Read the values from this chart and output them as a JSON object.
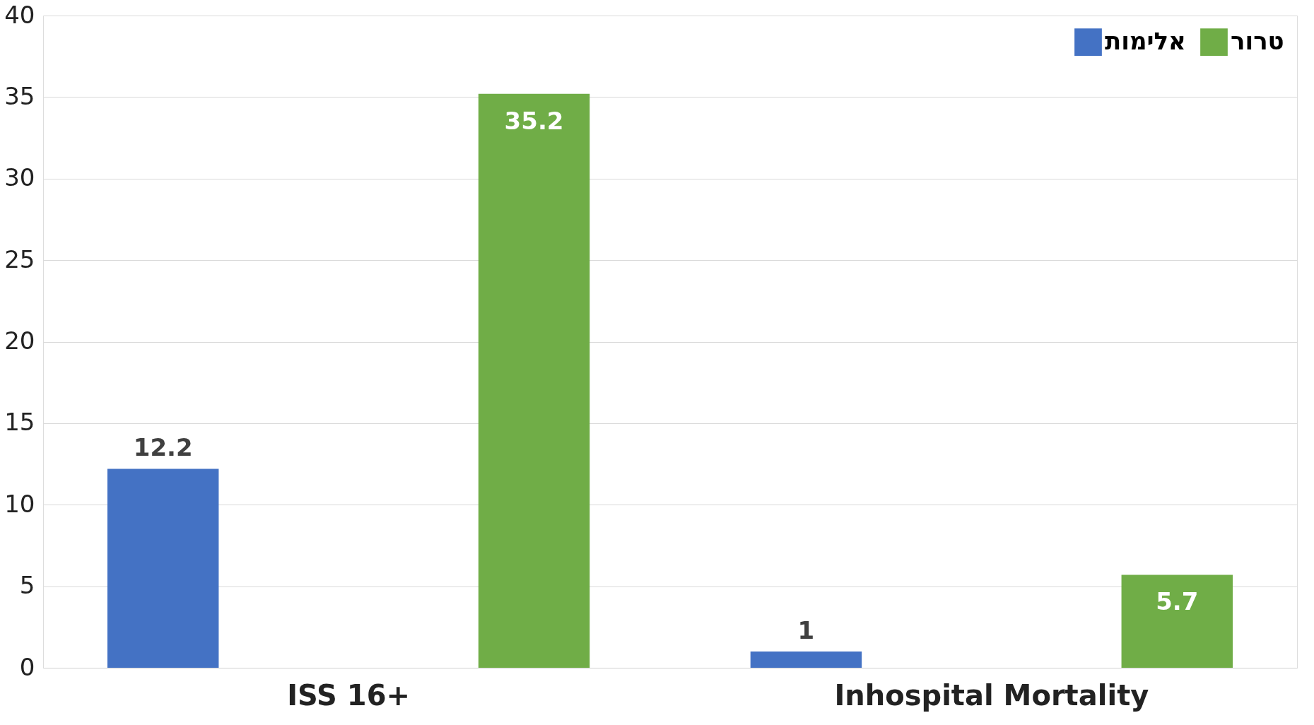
{
  "chart_data": {
    "type": "bar",
    "categories": [
      "ISS 16+",
      "Inhospital Mortality"
    ],
    "series": [
      {
        "name": "אלימות",
        "color": "#4472c4",
        "values": [
          12.2,
          1
        ]
      },
      {
        "name": "טרור",
        "color": "#70ad47",
        "values": [
          35.2,
          5.7
        ]
      }
    ],
    "ylim": [
      0,
      40
    ],
    "yticks": [
      0,
      5,
      10,
      15,
      20,
      25,
      30,
      35,
      40
    ],
    "grid": "y",
    "legend": "top right",
    "data_labels": true
  }
}
